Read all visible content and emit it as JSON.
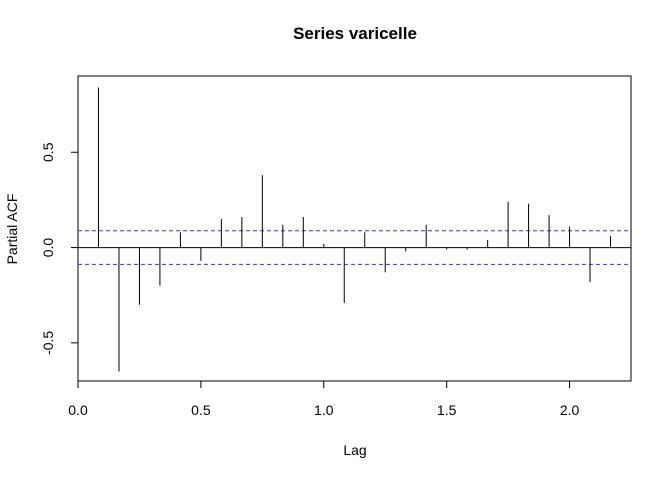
{
  "chart_data": {
    "type": "bar",
    "title": "Series  varicelle",
    "xlabel": "Lag",
    "ylabel": "Partial ACF",
    "xlim": [
      0,
      2.25
    ],
    "ylim": [
      -0.7,
      0.9
    ],
    "xticks": [
      {
        "value": 0.0,
        "label": "0.0"
      },
      {
        "value": 0.5,
        "label": "0.5"
      },
      {
        "value": 1.0,
        "label": "1.0"
      },
      {
        "value": 1.5,
        "label": "1.5"
      },
      {
        "value": 2.0,
        "label": "2.0"
      }
    ],
    "yticks": [
      {
        "value": -0.5,
        "label": "-0.5"
      },
      {
        "value": 0.0,
        "label": "0.0"
      },
      {
        "value": 0.5,
        "label": "0.5"
      }
    ],
    "confidence_bound": 0.088,
    "confidence_color": "#3333ee",
    "bar_color": "#000000",
    "grid": false,
    "points": [
      {
        "lag": 0.0833,
        "pacf": 0.84
      },
      {
        "lag": 0.1667,
        "pacf": -0.65
      },
      {
        "lag": 0.25,
        "pacf": -0.3
      },
      {
        "lag": 0.3333,
        "pacf": -0.2
      },
      {
        "lag": 0.4167,
        "pacf": 0.08
      },
      {
        "lag": 0.5,
        "pacf": -0.07
      },
      {
        "lag": 0.5833,
        "pacf": 0.15
      },
      {
        "lag": 0.6667,
        "pacf": 0.16
      },
      {
        "lag": 0.75,
        "pacf": 0.38
      },
      {
        "lag": 0.8333,
        "pacf": 0.12
      },
      {
        "lag": 0.9167,
        "pacf": 0.16
      },
      {
        "lag": 1.0,
        "pacf": 0.02
      },
      {
        "lag": 1.0833,
        "pacf": -0.29
      },
      {
        "lag": 1.1667,
        "pacf": 0.08
      },
      {
        "lag": 1.25,
        "pacf": -0.13
      },
      {
        "lag": 1.3333,
        "pacf": -0.02
      },
      {
        "lag": 1.4167,
        "pacf": 0.12
      },
      {
        "lag": 1.5,
        "pacf": -0.01
      },
      {
        "lag": 1.5833,
        "pacf": -0.01
      },
      {
        "lag": 1.6667,
        "pacf": 0.04
      },
      {
        "lag": 1.75,
        "pacf": 0.24
      },
      {
        "lag": 1.8333,
        "pacf": 0.23
      },
      {
        "lag": 1.9167,
        "pacf": 0.17
      },
      {
        "lag": 2.0,
        "pacf": 0.11
      },
      {
        "lag": 2.0833,
        "pacf": -0.18
      },
      {
        "lag": 2.1667,
        "pacf": 0.06
      }
    ]
  }
}
